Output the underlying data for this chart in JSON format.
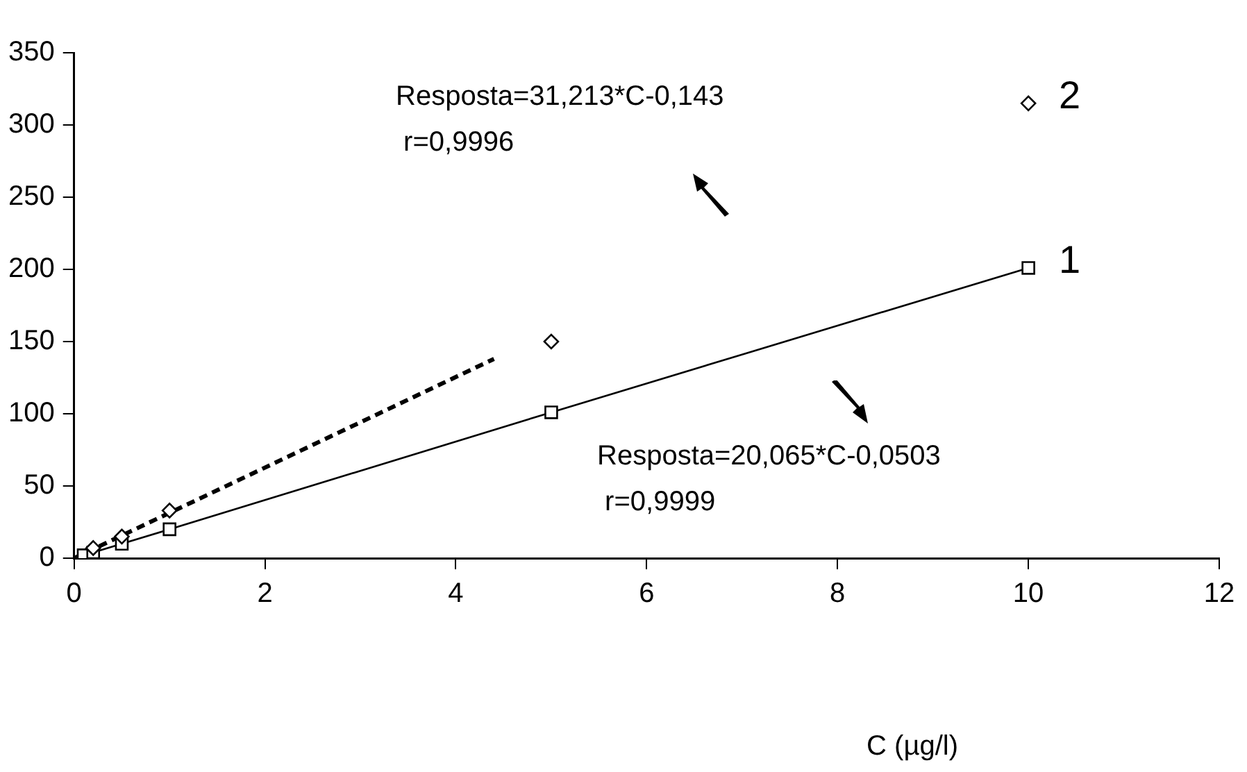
{
  "chart_data": {
    "type": "line",
    "xlabel": "C (µg/l)",
    "series": [
      {
        "name": "1",
        "type": "line",
        "color": "#000000",
        "marker": "square",
        "line_style": "solid",
        "x": [
          0.1,
          0.2,
          0.5,
          1,
          5,
          10
        ],
        "values": [
          2,
          4,
          10,
          20,
          101,
          201
        ]
      },
      {
        "name": "2",
        "type": "scatter",
        "color": "#000000",
        "marker": "diamond",
        "x": [
          0.2,
          0.5,
          1,
          5,
          10
        ],
        "values": [
          7,
          15,
          33,
          150,
          315
        ]
      },
      {
        "type": "line",
        "color": "#000000",
        "marker": "none",
        "line_style": "dashed",
        "x": [
          0,
          4.4
        ],
        "values": [
          0,
          138
        ]
      }
    ],
    "xlim": [
      0,
      12
    ],
    "xticks": [
      0,
      2,
      4,
      6,
      8,
      10,
      12
    ],
    "ylim": [
      0,
      350
    ],
    "yticks": [
      0,
      50,
      100,
      150,
      200,
      250,
      300,
      350
    ],
    "grid": false,
    "legend": false,
    "annotations": [
      "Resposta=31,213*C-0,143",
      " r=0,9996",
      "Resposta=20,065*C-0,0503",
      " r=0,9999"
    ]
  }
}
